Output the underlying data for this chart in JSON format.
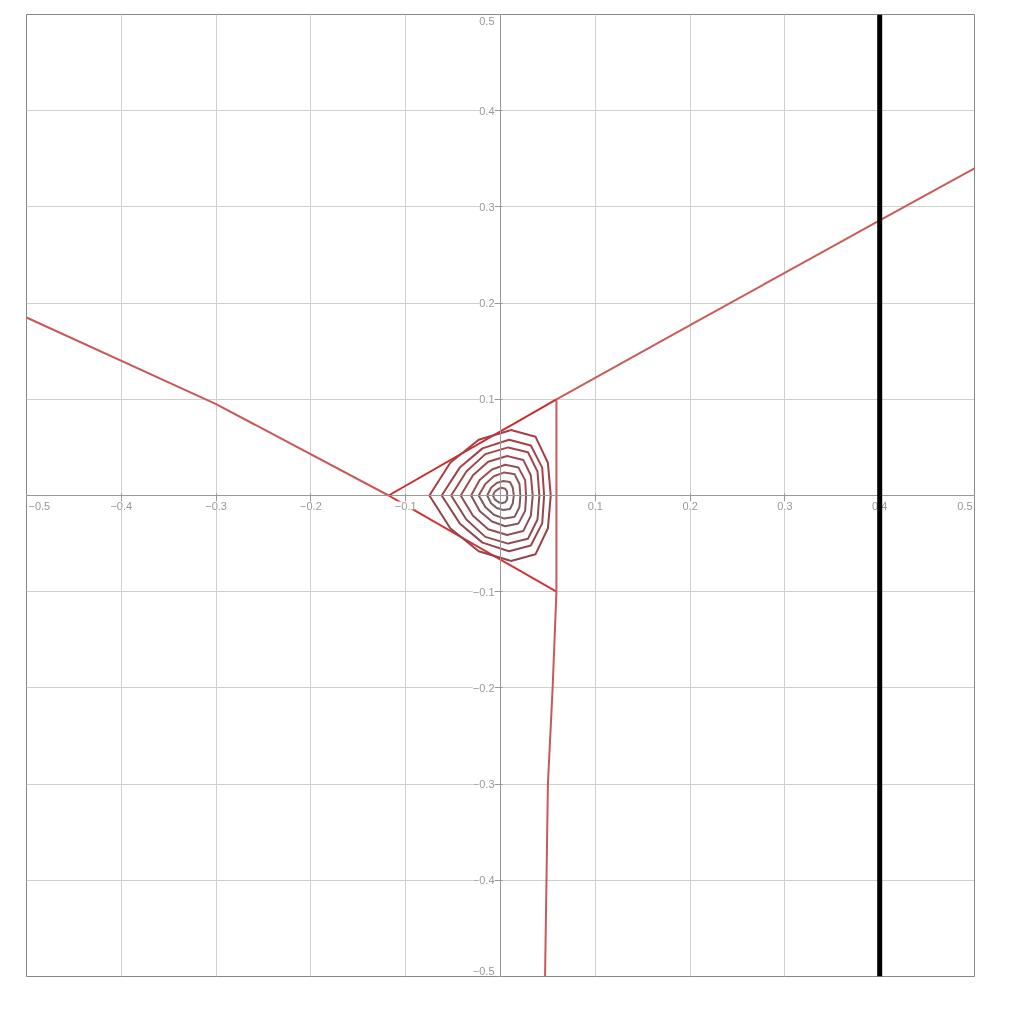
{
  "chart_data": {
    "type": "line",
    "xlim": [
      -0.5,
      0.5
    ],
    "ylim": [
      -0.5,
      0.5
    ],
    "xticks": [
      -0.5,
      -0.4,
      -0.3,
      -0.2,
      -0.1,
      {
        "value": 0,
        "label": null
      },
      0.1,
      0.2,
      0.3,
      0.4,
      0.5
    ],
    "yticks": [
      -0.5,
      -0.4,
      -0.3,
      -0.2,
      -0.1,
      {
        "value": 0,
        "label": null
      },
      0.1,
      0.2,
      0.3,
      0.4,
      0.5
    ],
    "grid": true,
    "ref_lines": [
      {
        "axis": "x",
        "value": 0.4,
        "color": "#000000"
      }
    ],
    "series": [
      {
        "color": "#cc2a2a",
        "x": [
          -0.118,
          0.059
        ],
        "values": [
          0,
          0.1
        ]
      },
      {
        "color": "#d03438",
        "x": [
          -0.118,
          0.059
        ],
        "values": [
          0,
          -0.1
        ]
      },
      {
        "color": "#c85a5a",
        "x": [
          -0.5,
          -0.3,
          -0.118
        ],
        "values": [
          0.185,
          0.095,
          0
        ]
      },
      {
        "color": "#c95c58",
        "x": [
          0.059,
          0.2,
          0.4,
          0.5
        ],
        "values": [
          0.1,
          0.177,
          0.286,
          0.34
        ]
      },
      {
        "color": "#c7585c",
        "x": [
          0.047,
          0.05,
          0.055,
          0.059,
          0.059
        ],
        "values": [
          -0.5,
          -0.3,
          -0.2,
          -0.1,
          0.1
        ]
      },
      {
        "color": "#8c5a62",
        "x": [
          -0.008,
          -0.006,
          -0.002,
          0.001,
          0.005,
          0.007,
          0.007
        ],
        "values": [
          0,
          0.004,
          0.007,
          0.008,
          0.007,
          0.004,
          0
        ]
      },
      {
        "color": "#7a6068",
        "x": [
          -0.008,
          -0.006,
          -0.002,
          0.001,
          0.005,
          0.007,
          0.007
        ],
        "values": [
          0,
          -0.004,
          -0.007,
          -0.008,
          -0.007,
          -0.004,
          0
        ]
      },
      {
        "color": "#90565e",
        "x": [
          -0.014,
          -0.01,
          -0.004,
          0.003,
          0.01,
          0.013,
          0.014
        ],
        "values": [
          0,
          0.008,
          0.013,
          0.015,
          0.014,
          0.008,
          0
        ]
      },
      {
        "color": "#7e5c64",
        "x": [
          -0.014,
          -0.01,
          -0.004,
          0.003,
          0.01,
          0.013,
          0.014
        ],
        "values": [
          0,
          -0.008,
          -0.013,
          -0.015,
          -0.014,
          -0.008,
          0
        ]
      },
      {
        "color": "#94525a",
        "x": [
          -0.023,
          -0.016,
          -0.007,
          0.004,
          0.015,
          0.02,
          0.021
        ],
        "values": [
          0,
          0.012,
          0.02,
          0.024,
          0.022,
          0.012,
          0
        ]
      },
      {
        "color": "#825860",
        "x": [
          -0.023,
          -0.016,
          -0.007,
          0.004,
          0.015,
          0.02,
          0.021
        ],
        "values": [
          0,
          -0.012,
          -0.02,
          -0.024,
          -0.022,
          -0.012,
          0
        ]
      },
      {
        "color": "#984e56",
        "x": [
          -0.031,
          -0.022,
          -0.009,
          0.005,
          0.019,
          0.026,
          0.027
        ],
        "values": [
          0,
          0.016,
          0.027,
          0.032,
          0.029,
          0.016,
          0
        ]
      },
      {
        "color": "#86545c",
        "x": [
          -0.031,
          -0.022,
          -0.009,
          0.005,
          0.019,
          0.026,
          0.027
        ],
        "values": [
          0,
          -0.016,
          -0.027,
          -0.032,
          -0.029,
          -0.016,
          0
        ]
      },
      {
        "color": "#9c4a52",
        "x": [
          -0.042,
          -0.029,
          -0.013,
          0.007,
          0.024,
          0.032,
          0.034
        ],
        "values": [
          0,
          0.021,
          0.035,
          0.041,
          0.037,
          0.021,
          0
        ]
      },
      {
        "color": "#8a5058",
        "x": [
          -0.042,
          -0.029,
          -0.013,
          0.007,
          0.024,
          0.032,
          0.034
        ],
        "values": [
          0,
          -0.021,
          -0.035,
          -0.041,
          -0.037,
          -0.021,
          0
        ]
      },
      {
        "color": "#a0464e",
        "x": [
          -0.052,
          -0.036,
          -0.016,
          0.008,
          0.029,
          0.039,
          0.041
        ],
        "values": [
          0,
          0.025,
          0.043,
          0.05,
          0.045,
          0.025,
          0
        ]
      },
      {
        "color": "#8e4c54",
        "x": [
          -0.052,
          -0.036,
          -0.016,
          0.008,
          0.029,
          0.039,
          0.041
        ],
        "values": [
          0,
          -0.025,
          -0.043,
          -0.05,
          -0.045,
          -0.025,
          0
        ]
      },
      {
        "color": "#a4424a",
        "x": [
          -0.062,
          -0.043,
          -0.019,
          0.009,
          0.032,
          0.044,
          0.046
        ],
        "values": [
          0,
          0.029,
          0.049,
          0.058,
          0.052,
          0.029,
          0
        ]
      },
      {
        "color": "#924850",
        "x": [
          -0.062,
          -0.043,
          -0.019,
          0.009,
          0.032,
          0.044,
          0.046
        ],
        "values": [
          0,
          -0.029,
          -0.049,
          -0.058,
          -0.052,
          -0.029,
          0
        ]
      },
      {
        "color": "#a83e46",
        "x": [
          -0.075,
          -0.053,
          -0.023,
          0.011,
          0.037,
          0.05,
          0.053
        ],
        "values": [
          0,
          0.034,
          0.058,
          0.068,
          0.061,
          0.034,
          0
        ]
      },
      {
        "color": "#96444c",
        "x": [
          -0.075,
          -0.053,
          -0.023,
          0.011,
          0.037,
          0.05,
          0.053
        ],
        "values": [
          0,
          -0.034,
          -0.058,
          -0.068,
          -0.061,
          -0.034,
          0
        ]
      }
    ]
  }
}
